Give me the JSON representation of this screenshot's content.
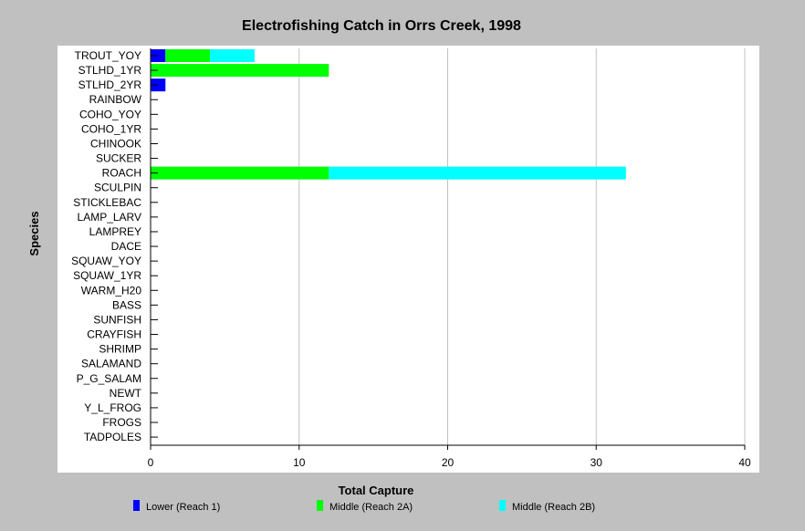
{
  "chart_data": {
    "type": "bar",
    "orientation": "horizontal",
    "stacked": true,
    "title": "Electrofishing Catch in Orrs Creek, 1998",
    "xlabel": "Total Capture",
    "ylabel": "Species",
    "xlim": [
      0,
      40
    ],
    "xticks": [
      0,
      10,
      20,
      30,
      40
    ],
    "grid": true,
    "legend_position": "bottom",
    "categories": [
      "TROUT_YOY",
      "STLHD_1YR",
      "STLHD_2YR",
      "RAINBOW",
      "COHO_YOY",
      "COHO_1YR",
      "CHINOOK",
      "SUCKER",
      "ROACH",
      "SCULPIN",
      "STICKLEBAC",
      "LAMP_LARV",
      "LAMPREY",
      "DACE",
      "SQUAW_YOY",
      "SQUAW_1YR",
      "WARM_H20",
      "BASS",
      "SUNFISH",
      "CRAYFISH",
      "SHRIMP",
      "SALAMAND",
      "P_G_SALAM",
      "NEWT",
      "Y_L_FROG",
      "FROGS",
      "TADPOLES"
    ],
    "series": [
      {
        "name": "Lower (Reach 1)",
        "color": "#0000ff",
        "values": [
          1,
          0,
          1,
          0,
          0,
          0,
          0,
          0,
          0,
          0,
          0,
          0,
          0,
          0,
          0,
          0,
          0,
          0,
          0,
          0,
          0,
          0,
          0,
          0,
          0,
          0,
          0
        ]
      },
      {
        "name": "Middle (Reach 2A)",
        "color": "#00ff00",
        "values": [
          3,
          12,
          0,
          0,
          0,
          0,
          0,
          0,
          12,
          0,
          0,
          0,
          0,
          0,
          0,
          0,
          0,
          0,
          0,
          0,
          0,
          0,
          0,
          0,
          0,
          0,
          0
        ]
      },
      {
        "name": "Middle (Reach 2B)",
        "color": "#00ffff",
        "values": [
          3,
          0,
          0,
          0,
          0,
          0,
          0,
          0,
          20,
          0,
          0,
          0,
          0,
          0,
          0,
          0,
          0,
          0,
          0,
          0,
          0,
          0,
          0,
          0,
          0,
          0,
          0
        ]
      }
    ]
  },
  "colors": {
    "background": "#c0c0c0",
    "plot_background": "#ffffff",
    "grid": "#c0c0c0"
  }
}
